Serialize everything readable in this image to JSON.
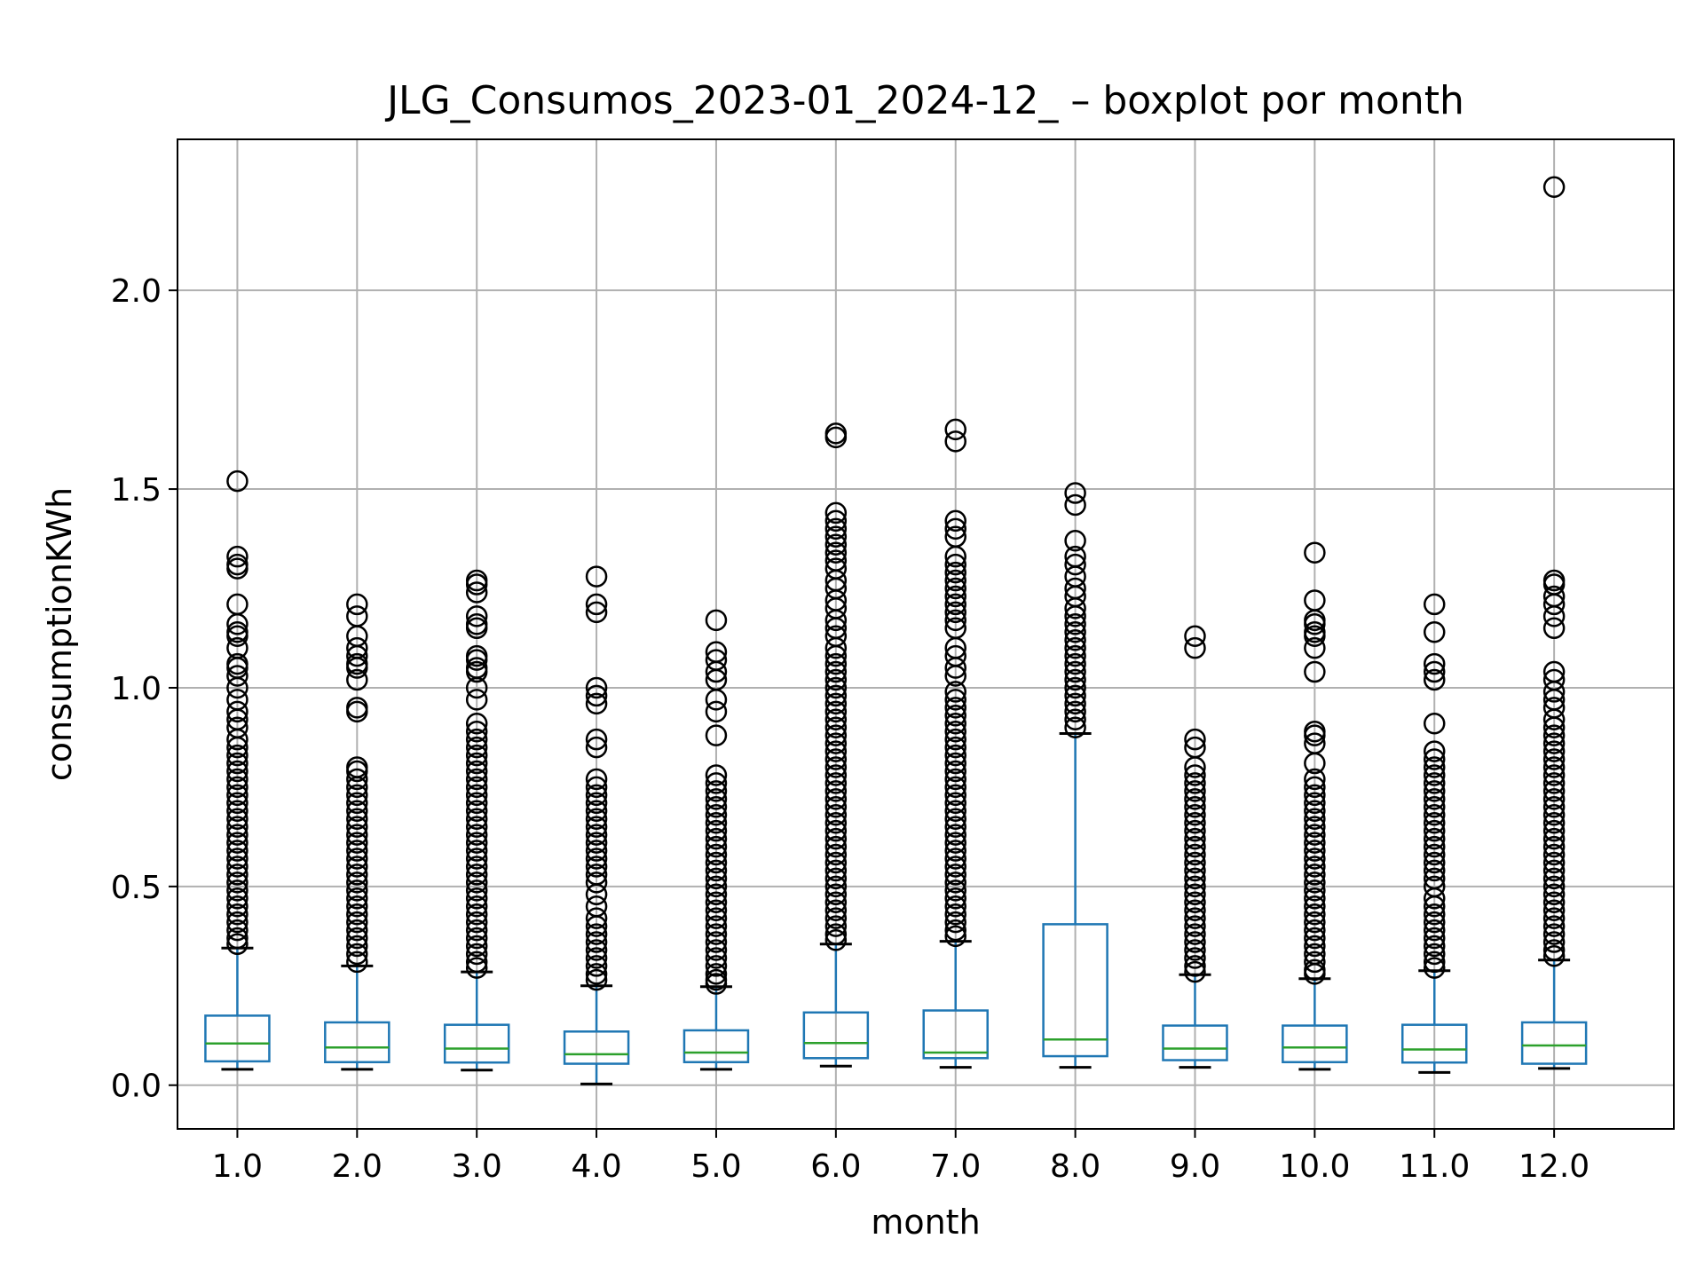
{
  "chart_data": {
    "type": "boxplot",
    "title": "JLG_Consumos_2023-01_2024-12_ – boxplot por month",
    "xlabel": "month",
    "ylabel": "consumptionKWh",
    "ylim": [
      -0.11,
      2.38
    ],
    "yticks": [
      0.0,
      0.5,
      1.0,
      1.5,
      2.0
    ],
    "ytick_labels": [
      "0.0",
      "0.5",
      "1.0",
      "1.5",
      "2.0"
    ],
    "grid": true,
    "colors": {
      "box": "#1f77b4",
      "median": "#2ca02c",
      "whisker": "#1f77b4",
      "cap": "#000000",
      "flier": "#000000",
      "grid": "#b0b0b0"
    },
    "categories": [
      "1.0",
      "2.0",
      "3.0",
      "4.0",
      "5.0",
      "6.0",
      "7.0",
      "8.0",
      "9.0",
      "10.0",
      "11.0",
      "12.0"
    ],
    "boxes": [
      {
        "whislo": 0.04,
        "q1": 0.06,
        "med": 0.105,
        "q3": 0.175,
        "whishi": 0.345,
        "fliers": [
          1.52,
          1.33,
          1.31,
          1.3,
          1.21,
          1.16,
          1.14,
          1.13,
          1.1,
          1.06,
          1.05,
          1.03,
          1.0,
          0.97,
          0.94,
          0.92,
          0.9,
          0.87,
          0.85,
          0.83,
          0.81,
          0.79,
          0.77,
          0.75,
          0.73,
          0.71,
          0.69,
          0.67,
          0.65,
          0.63,
          0.61,
          0.59,
          0.57,
          0.55,
          0.53,
          0.51,
          0.49,
          0.47,
          0.45,
          0.43,
          0.41,
          0.39,
          0.37,
          0.355
        ]
      },
      {
        "whislo": 0.04,
        "q1": 0.058,
        "med": 0.095,
        "q3": 0.158,
        "whishi": 0.3,
        "fliers": [
          1.21,
          1.18,
          1.13,
          1.1,
          1.08,
          1.06,
          1.05,
          1.02,
          0.95,
          0.94,
          0.8,
          0.79,
          0.77,
          0.75,
          0.73,
          0.71,
          0.69,
          0.67,
          0.65,
          0.63,
          0.61,
          0.59,
          0.57,
          0.55,
          0.53,
          0.51,
          0.49,
          0.47,
          0.45,
          0.43,
          0.41,
          0.39,
          0.37,
          0.35,
          0.33,
          0.31
        ]
      },
      {
        "whislo": 0.038,
        "q1": 0.057,
        "med": 0.092,
        "q3": 0.152,
        "whishi": 0.285,
        "fliers": [
          1.27,
          1.26,
          1.24,
          1.18,
          1.16,
          1.15,
          1.08,
          1.07,
          1.05,
          1.04,
          1.0,
          0.97,
          0.91,
          0.89,
          0.87,
          0.85,
          0.83,
          0.81,
          0.79,
          0.77,
          0.75,
          0.73,
          0.71,
          0.69,
          0.67,
          0.65,
          0.63,
          0.61,
          0.59,
          0.57,
          0.55,
          0.53,
          0.51,
          0.49,
          0.47,
          0.45,
          0.43,
          0.41,
          0.39,
          0.37,
          0.35,
          0.33,
          0.31,
          0.295
        ]
      },
      {
        "whislo": 0.003,
        "q1": 0.054,
        "med": 0.078,
        "q3": 0.135,
        "whishi": 0.25,
        "fliers": [
          1.28,
          1.21,
          1.19,
          1.0,
          0.98,
          0.96,
          0.87,
          0.85,
          0.77,
          0.75,
          0.73,
          0.71,
          0.69,
          0.67,
          0.65,
          0.63,
          0.61,
          0.59,
          0.57,
          0.55,
          0.53,
          0.51,
          0.48,
          0.45,
          0.42,
          0.4,
          0.38,
          0.36,
          0.34,
          0.32,
          0.3,
          0.28,
          0.265
        ]
      },
      {
        "whislo": 0.04,
        "q1": 0.058,
        "med": 0.082,
        "q3": 0.138,
        "whishi": 0.248,
        "fliers": [
          1.17,
          1.09,
          1.07,
          1.04,
          1.02,
          0.97,
          0.94,
          0.88,
          0.78,
          0.76,
          0.74,
          0.72,
          0.7,
          0.68,
          0.66,
          0.64,
          0.62,
          0.6,
          0.58,
          0.56,
          0.54,
          0.52,
          0.5,
          0.48,
          0.46,
          0.44,
          0.42,
          0.4,
          0.38,
          0.36,
          0.34,
          0.32,
          0.3,
          0.28,
          0.265,
          0.255
        ]
      },
      {
        "whislo": 0.048,
        "q1": 0.068,
        "med": 0.106,
        "q3": 0.183,
        "whishi": 0.355,
        "fliers": [
          1.64,
          1.63,
          1.44,
          1.42,
          1.4,
          1.38,
          1.36,
          1.34,
          1.32,
          1.3,
          1.27,
          1.25,
          1.22,
          1.2,
          1.17,
          1.15,
          1.13,
          1.1,
          1.08,
          1.06,
          1.04,
          1.02,
          1.0,
          0.98,
          0.96,
          0.94,
          0.92,
          0.9,
          0.88,
          0.86,
          0.84,
          0.82,
          0.8,
          0.78,
          0.76,
          0.74,
          0.72,
          0.7,
          0.68,
          0.66,
          0.64,
          0.62,
          0.6,
          0.58,
          0.56,
          0.54,
          0.52,
          0.5,
          0.48,
          0.46,
          0.44,
          0.42,
          0.4,
          0.38,
          0.365
        ]
      },
      {
        "whislo": 0.045,
        "q1": 0.068,
        "med": 0.082,
        "q3": 0.188,
        "whishi": 0.362,
        "fliers": [
          1.65,
          1.62,
          1.42,
          1.4,
          1.38,
          1.33,
          1.31,
          1.29,
          1.27,
          1.25,
          1.23,
          1.21,
          1.19,
          1.17,
          1.15,
          1.1,
          1.08,
          1.05,
          1.03,
          0.99,
          0.97,
          0.95,
          0.93,
          0.91,
          0.89,
          0.87,
          0.85,
          0.83,
          0.81,
          0.79,
          0.77,
          0.75,
          0.73,
          0.71,
          0.69,
          0.67,
          0.65,
          0.63,
          0.61,
          0.59,
          0.57,
          0.55,
          0.53,
          0.51,
          0.49,
          0.47,
          0.45,
          0.43,
          0.41,
          0.39,
          0.375
        ]
      },
      {
        "whislo": 0.045,
        "q1": 0.073,
        "med": 0.115,
        "q3": 0.405,
        "whishi": 0.885,
        "fliers": [
          1.49,
          1.46,
          1.37,
          1.33,
          1.31,
          1.28,
          1.25,
          1.23,
          1.2,
          1.18,
          1.16,
          1.14,
          1.12,
          1.1,
          1.08,
          1.06,
          1.04,
          1.02,
          1.0,
          0.98,
          0.96,
          0.94,
          0.92,
          0.9
        ]
      },
      {
        "whislo": 0.045,
        "q1": 0.063,
        "med": 0.092,
        "q3": 0.15,
        "whishi": 0.278,
        "fliers": [
          1.13,
          1.1,
          0.87,
          0.85,
          0.8,
          0.78,
          0.76,
          0.74,
          0.72,
          0.7,
          0.68,
          0.66,
          0.64,
          0.62,
          0.6,
          0.58,
          0.56,
          0.54,
          0.52,
          0.5,
          0.48,
          0.46,
          0.44,
          0.42,
          0.4,
          0.38,
          0.36,
          0.34,
          0.32,
          0.3,
          0.285
        ]
      },
      {
        "whislo": 0.04,
        "q1": 0.058,
        "med": 0.095,
        "q3": 0.15,
        "whishi": 0.268,
        "fliers": [
          1.34,
          1.22,
          1.17,
          1.16,
          1.14,
          1.13,
          1.1,
          1.04,
          0.89,
          0.88,
          0.86,
          0.81,
          0.77,
          0.75,
          0.73,
          0.71,
          0.69,
          0.67,
          0.65,
          0.63,
          0.61,
          0.59,
          0.57,
          0.55,
          0.53,
          0.51,
          0.49,
          0.47,
          0.45,
          0.43,
          0.41,
          0.39,
          0.37,
          0.35,
          0.33,
          0.31,
          0.29,
          0.28
        ]
      },
      {
        "whislo": 0.032,
        "q1": 0.057,
        "med": 0.09,
        "q3": 0.152,
        "whishi": 0.288,
        "fliers": [
          1.21,
          1.14,
          1.06,
          1.04,
          1.02,
          0.91,
          0.84,
          0.82,
          0.8,
          0.78,
          0.76,
          0.74,
          0.72,
          0.7,
          0.68,
          0.66,
          0.64,
          0.62,
          0.6,
          0.58,
          0.56,
          0.54,
          0.52,
          0.5,
          0.47,
          0.45,
          0.43,
          0.41,
          0.39,
          0.37,
          0.35,
          0.33,
          0.31,
          0.295
        ]
      },
      {
        "whislo": 0.042,
        "q1": 0.054,
        "med": 0.1,
        "q3": 0.158,
        "whishi": 0.315,
        "fliers": [
          2.26,
          1.27,
          1.26,
          1.23,
          1.21,
          1.18,
          1.15,
          1.04,
          1.02,
          0.99,
          0.97,
          0.95,
          0.92,
          0.9,
          0.88,
          0.86,
          0.84,
          0.82,
          0.8,
          0.78,
          0.76,
          0.74,
          0.72,
          0.7,
          0.68,
          0.66,
          0.64,
          0.62,
          0.6,
          0.58,
          0.56,
          0.54,
          0.52,
          0.5,
          0.48,
          0.46,
          0.44,
          0.42,
          0.4,
          0.38,
          0.36,
          0.34,
          0.325
        ]
      }
    ]
  }
}
